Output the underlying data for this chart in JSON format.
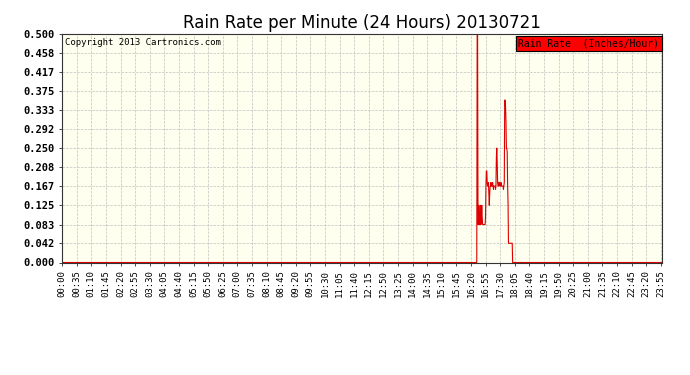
{
  "title": "Rain Rate per Minute (24 Hours) 20130721",
  "copyright_text": "Copyright 2013 Cartronics.com",
  "legend_label": "Rain Rate  (Inches/Hour)",
  "ylabel_ticks": [
    0.0,
    0.042,
    0.083,
    0.125,
    0.167,
    0.208,
    0.25,
    0.292,
    0.333,
    0.375,
    0.417,
    0.458,
    0.5
  ],
  "ylim": [
    0.0,
    0.5
  ],
  "background_color": "#ffffff",
  "plot_bg_color": "#fffff0",
  "grid_color": "#bbbbbb",
  "line_color": "#dd0000",
  "title_fontsize": 12,
  "tick_fontsize": 6.5,
  "total_minutes": 1440,
  "rain_data": [
    [
      995,
      0.5
    ],
    [
      996,
      0.5
    ],
    [
      997,
      0.083
    ],
    [
      998,
      0.083
    ],
    [
      999,
      0.125
    ],
    [
      1000,
      0.083
    ],
    [
      1001,
      0.1
    ],
    [
      1002,
      0.083
    ],
    [
      1003,
      0.125
    ],
    [
      1004,
      0.083
    ],
    [
      1005,
      0.1
    ],
    [
      1006,
      0.125
    ],
    [
      1007,
      0.1
    ],
    [
      1008,
      0.083
    ],
    [
      1009,
      0.083
    ],
    [
      1010,
      0.083
    ],
    [
      1011,
      0.083
    ],
    [
      1012,
      0.083
    ],
    [
      1013,
      0.083
    ],
    [
      1014,
      0.083
    ],
    [
      1015,
      0.1
    ],
    [
      1016,
      0.167
    ],
    [
      1017,
      0.2
    ],
    [
      1018,
      0.2
    ],
    [
      1019,
      0.175
    ],
    [
      1020,
      0.167
    ],
    [
      1021,
      0.167
    ],
    [
      1022,
      0.175
    ],
    [
      1023,
      0.15
    ],
    [
      1024,
      0.125
    ],
    [
      1025,
      0.15
    ],
    [
      1026,
      0.167
    ],
    [
      1027,
      0.167
    ],
    [
      1028,
      0.175
    ],
    [
      1029,
      0.167
    ],
    [
      1030,
      0.167
    ],
    [
      1031,
      0.167
    ],
    [
      1032,
      0.175
    ],
    [
      1033,
      0.167
    ],
    [
      1034,
      0.16
    ],
    [
      1035,
      0.167
    ],
    [
      1036,
      0.167
    ],
    [
      1037,
      0.167
    ],
    [
      1038,
      0.167
    ],
    [
      1039,
      0.16
    ],
    [
      1040,
      0.167
    ],
    [
      1041,
      0.23
    ],
    [
      1042,
      0.25
    ],
    [
      1043,
      0.22
    ],
    [
      1044,
      0.175
    ],
    [
      1045,
      0.167
    ],
    [
      1046,
      0.167
    ],
    [
      1047,
      0.175
    ],
    [
      1048,
      0.175
    ],
    [
      1049,
      0.167
    ],
    [
      1050,
      0.167
    ],
    [
      1051,
      0.167
    ],
    [
      1052,
      0.175
    ],
    [
      1053,
      0.167
    ],
    [
      1054,
      0.167
    ],
    [
      1055,
      0.167
    ],
    [
      1056,
      0.167
    ],
    [
      1057,
      0.167
    ],
    [
      1058,
      0.16
    ],
    [
      1059,
      0.167
    ],
    [
      1060,
      0.175
    ],
    [
      1061,
      0.355
    ],
    [
      1062,
      0.355
    ],
    [
      1063,
      0.34
    ],
    [
      1064,
      0.31
    ],
    [
      1065,
      0.25
    ],
    [
      1066,
      0.25
    ],
    [
      1067,
      0.24
    ],
    [
      1068,
      0.167
    ],
    [
      1069,
      0.13
    ],
    [
      1070,
      0.042
    ],
    [
      1071,
      0.042
    ],
    [
      1072,
      0.042
    ],
    [
      1073,
      0.042
    ],
    [
      1074,
      0.042
    ],
    [
      1075,
      0.042
    ],
    [
      1076,
      0.042
    ],
    [
      1077,
      0.042
    ],
    [
      1078,
      0.042
    ],
    [
      1079,
      0.042
    ],
    [
      1080,
      0.0
    ]
  ]
}
